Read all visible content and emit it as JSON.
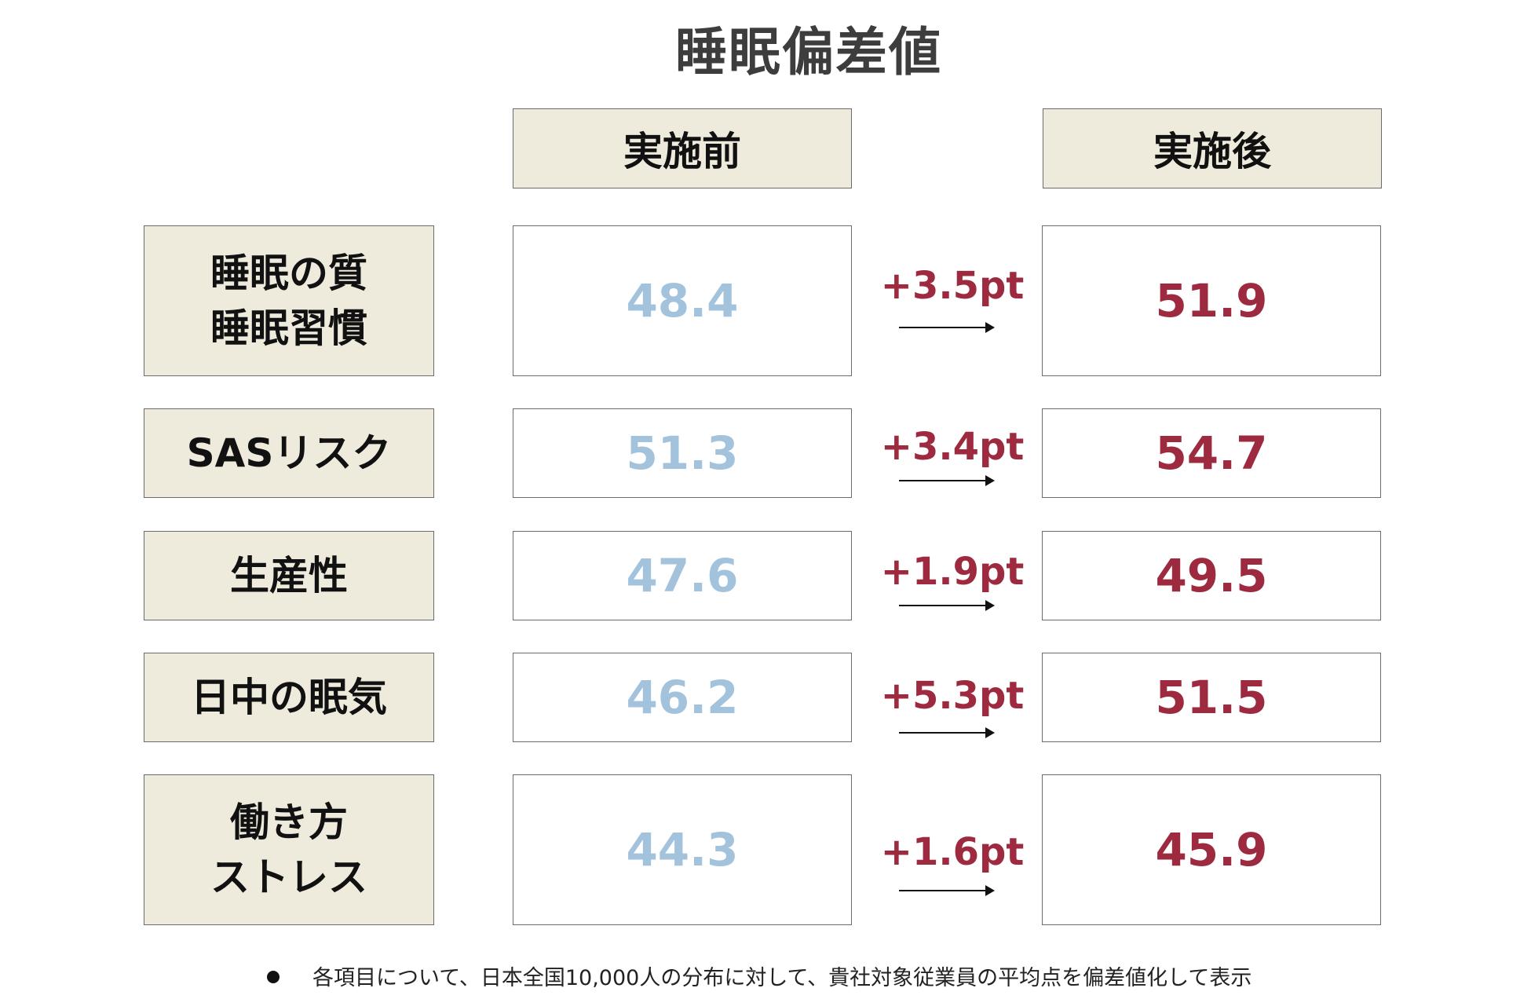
{
  "title": "睡眠偏差値",
  "headers": {
    "before": "実施前",
    "after": "実施後"
  },
  "rows": [
    {
      "label_line1": "睡眠の質",
      "label_line2": "睡眠習慣",
      "before": "48.4",
      "delta": "+3.5pt",
      "after": "51.9"
    },
    {
      "label_line1": "SASリスク",
      "label_line2": "",
      "before": "51.3",
      "delta": "+3.4pt",
      "after": "54.7"
    },
    {
      "label_line1": "生産性",
      "label_line2": "",
      "before": "47.6",
      "delta": "+1.9pt",
      "after": "49.5"
    },
    {
      "label_line1": "日中の眠気",
      "label_line2": "",
      "before": "46.2",
      "delta": "+5.3pt",
      "after": "51.5"
    },
    {
      "label_line1": "働き方",
      "label_line2": "ストレス",
      "before": "44.3",
      "delta": "+1.6pt",
      "after": "45.9"
    }
  ],
  "footnote": "各項目について、日本全国10,000人の分布に対して、貴社対象従業員の平均点を偏差値化して表示",
  "colors": {
    "before_value": "#a3c2dc",
    "after_value": "#9e2a40",
    "delta": "#9e2a40",
    "label_bg": "#eeebdd"
  }
}
